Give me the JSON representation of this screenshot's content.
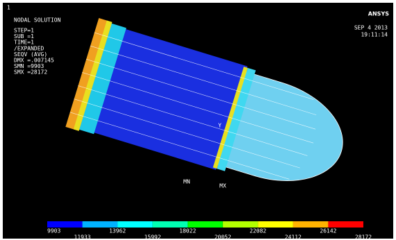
{
  "header": {
    "number": "1",
    "title": "NODAL SOLUTION",
    "lines": [
      "STEP=1",
      "SUB =1",
      "TIME=1",
      "/EXPANDED",
      "SEQV     (AVG)",
      "DMX =.007145",
      "SMN =9903",
      "SMX =28172"
    ]
  },
  "brand": {
    "logo": "ANSYS",
    "date": "SEP  4 2013",
    "time": "19:11:14"
  },
  "model": {
    "axis_label": "Y",
    "min_label": "MN",
    "max_label": "MX"
  },
  "legend": {
    "labels": [
      "9903",
      "11933",
      "13962",
      "15992",
      "18022",
      "20052",
      "22082",
      "24112",
      "26142",
      "28172"
    ],
    "colors": [
      "#0000ff",
      "#00b2ff",
      "#00ffff",
      "#00ffb2",
      "#00ff00",
      "#b2ff00",
      "#ffff00",
      "#ffb200",
      "#ff0000"
    ]
  }
}
